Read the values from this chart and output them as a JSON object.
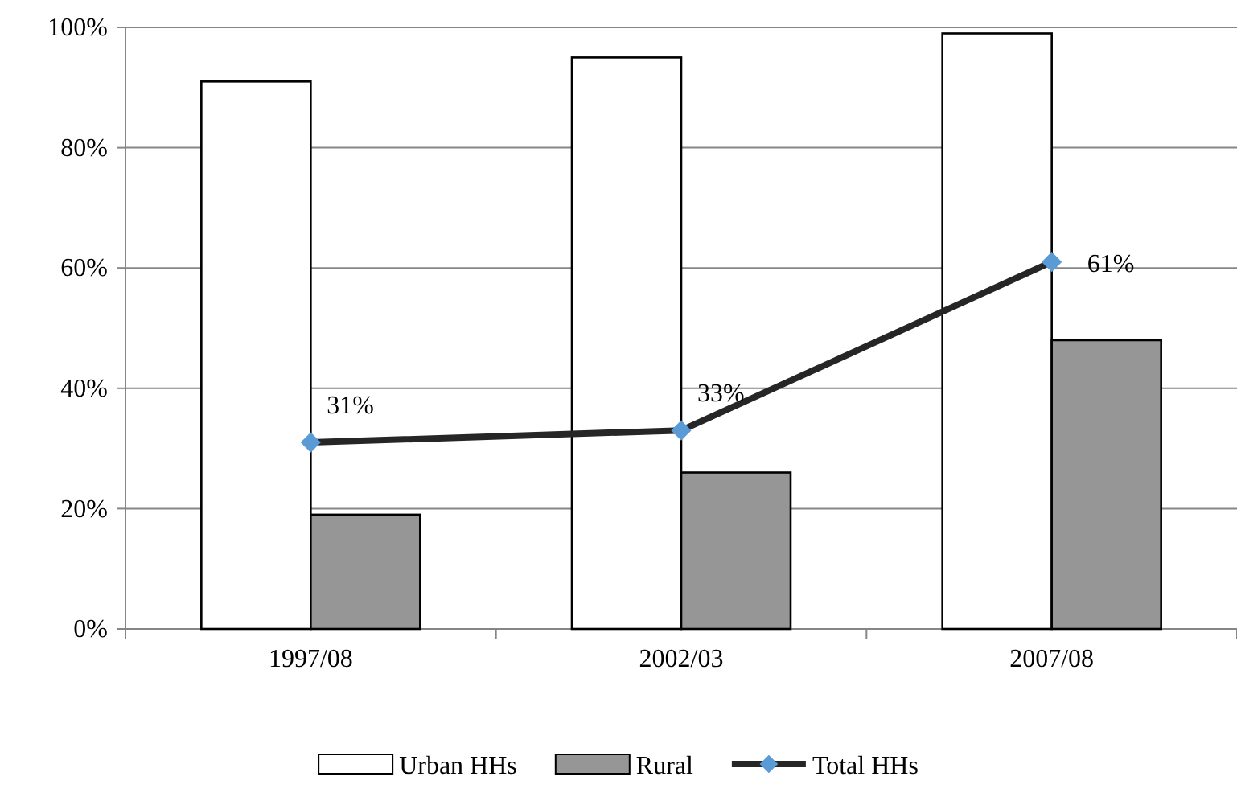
{
  "chart_data": {
    "type": "bar",
    "categories": [
      "1997/08",
      "2002/03",
      "2007/08"
    ],
    "series": [
      {
        "name": "Urban HHs",
        "color": "#ffffff",
        "values": [
          91,
          95,
          99
        ]
      },
      {
        "name": "Rural",
        "color": "#969696",
        "values": [
          19,
          26,
          48
        ]
      },
      {
        "name": "Total HHs",
        "type": "line",
        "color": "#262626",
        "marker": "diamond",
        "colors": [
          "#5b9bd5",
          "#5b9bd5",
          "#5b9bd5"
        ],
        "values": [
          31,
          33,
          61
        ],
        "value_labels": [
          "31%",
          "33%",
          "61%"
        ]
      }
    ],
    "ylim": [
      0,
      100
    ],
    "yticks": [
      {
        "value": 0,
        "label": "0%"
      },
      {
        "value": 20,
        "label": "20%"
      },
      {
        "value": 40,
        "label": "40%"
      },
      {
        "value": 60,
        "label": "60%"
      },
      {
        "value": 80,
        "label": "80%"
      },
      {
        "value": 100,
        "label": "100%"
      }
    ],
    "grid": "y",
    "legend": "bottom"
  }
}
